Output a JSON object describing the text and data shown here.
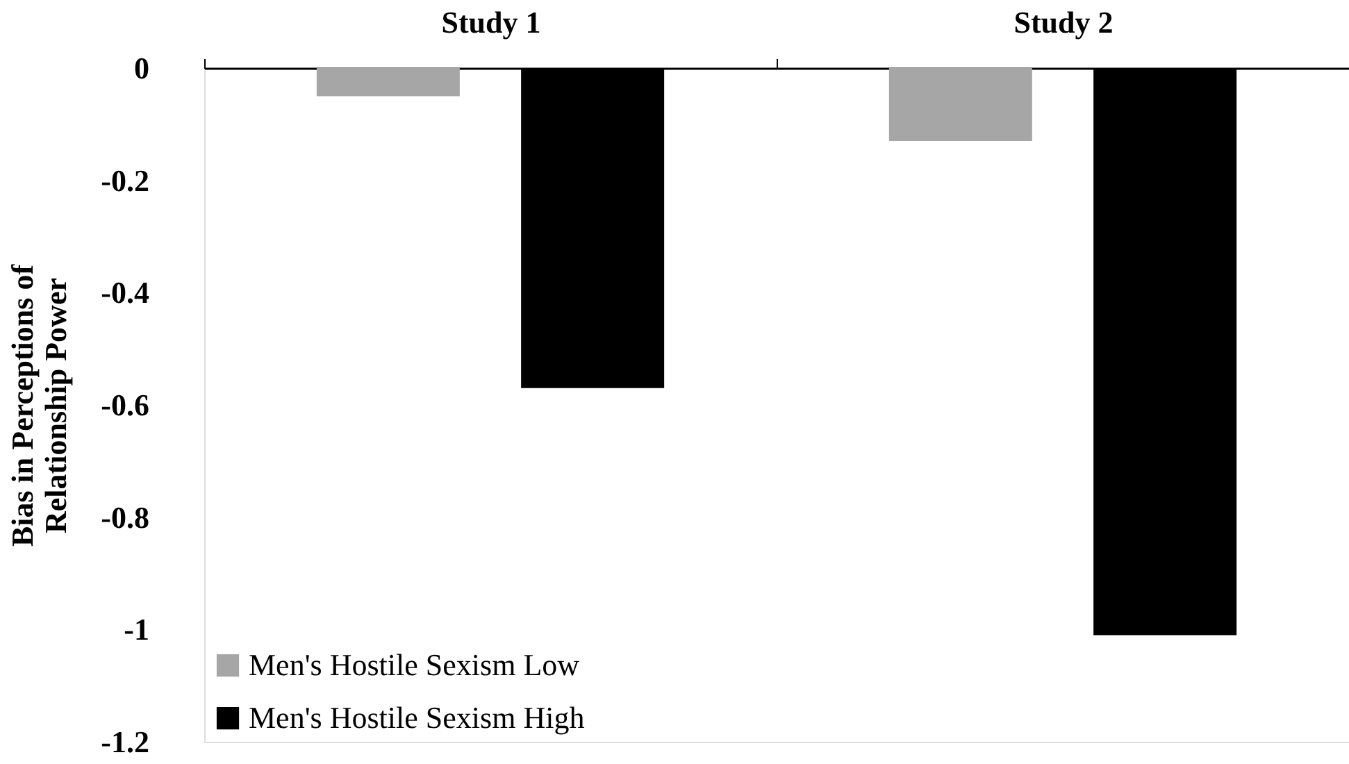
{
  "chart_data": {
    "type": "bar",
    "categories": [
      "Study 1",
      "Study 2"
    ],
    "ylabel": "Bias in Perceptions of\nRelationship Power",
    "series": [
      {
        "name": "Men's Hostile Sexism Low",
        "color": "#a6a6a6",
        "values": [
          -0.05,
          -0.13
        ]
      },
      {
        "name": "Men's Hostile Sexism High",
        "color": "#000000",
        "values": [
          -0.57,
          -1.01
        ]
      }
    ],
    "ylim": [
      -1.2,
      0
    ],
    "yticks": [
      0,
      -0.2,
      -0.4,
      -0.6,
      -0.8,
      -1,
      -1.2
    ],
    "grid": false,
    "legend": "bottom left"
  }
}
